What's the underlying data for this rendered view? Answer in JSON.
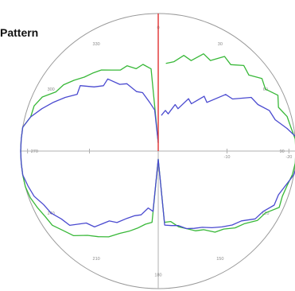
{
  "chart_data": {
    "type": "line",
    "subtype": "polar",
    "title": "Pattern",
    "angle_tick_labels": [
      "0",
      "30",
      "60",
      "90",
      "120",
      "150",
      "180",
      "210",
      "240",
      "270",
      "300",
      "330"
    ],
    "angle_tick_degrees": [
      0,
      30,
      60,
      90,
      120,
      150,
      180,
      210,
      240,
      270,
      300,
      330
    ],
    "radial_tick_labels": [
      "-10",
      "-20"
    ],
    "radial_tick_radii": [
      0.5,
      0.95
    ],
    "grid": true,
    "legend": "none",
    "reference_line": {
      "angle_from": 0,
      "r": 1.0,
      "color": "#e03030"
    },
    "colors": {
      "outer_circle": "#9a9a9a",
      "axes": "#b0b0b0"
    },
    "series": [
      {
        "color": "#38b838",
        "points": [
          [
            5,
            0.64
          ],
          [
            10,
            0.66
          ],
          [
            15,
            0.72
          ],
          [
            20,
            0.7
          ],
          [
            25,
            0.78
          ],
          [
            30,
            0.76
          ],
          [
            35,
            0.84
          ],
          [
            40,
            0.82
          ],
          [
            45,
            0.88
          ],
          [
            50,
            0.86
          ],
          [
            55,
            0.92
          ],
          [
            60,
            0.9
          ],
          [
            65,
            0.96
          ],
          [
            70,
            0.93
          ],
          [
            75,
            0.97
          ],
          [
            80,
            0.98
          ],
          [
            85,
            1.0
          ],
          [
            90,
            1.0
          ],
          [
            95,
            1.0
          ],
          [
            100,
            0.99
          ],
          [
            105,
            0.97
          ],
          [
            110,
            0.96
          ],
          [
            115,
            0.97
          ],
          [
            120,
            0.9
          ],
          [
            125,
            0.88
          ],
          [
            130,
            0.82
          ],
          [
            135,
            0.79
          ],
          [
            140,
            0.74
          ],
          [
            145,
            0.72
          ],
          [
            150,
            0.66
          ],
          [
            155,
            0.64
          ],
          [
            160,
            0.6
          ],
          [
            165,
            0.57
          ],
          [
            170,
            0.52
          ],
          [
            175,
            0.52
          ],
          [
            180,
            0.06
          ],
          [
            185,
            0.52
          ],
          [
            190,
            0.54
          ],
          [
            195,
            0.58
          ],
          [
            200,
            0.62
          ],
          [
            205,
            0.66
          ],
          [
            210,
            0.72
          ],
          [
            215,
            0.76
          ],
          [
            220,
            0.8
          ],
          [
            225,
            0.87
          ],
          [
            230,
            0.9
          ],
          [
            235,
            0.94
          ],
          [
            240,
            0.95
          ],
          [
            245,
            0.97
          ],
          [
            250,
            0.99
          ],
          [
            255,
            1.0
          ],
          [
            260,
            1.0
          ],
          [
            265,
            1.0
          ],
          [
            270,
            1.0
          ],
          [
            275,
            1.0
          ],
          [
            280,
            1.0
          ],
          [
            285,
            0.96
          ],
          [
            290,
            0.96
          ],
          [
            295,
            0.93
          ],
          [
            300,
            0.86
          ],
          [
            305,
            0.84
          ],
          [
            310,
            0.8
          ],
          [
            315,
            0.76
          ],
          [
            320,
            0.74
          ],
          [
            325,
            0.72
          ],
          [
            330,
            0.68
          ],
          [
            335,
            0.65
          ],
          [
            340,
            0.66
          ],
          [
            345,
            0.62
          ],
          [
            350,
            0.64
          ],
          [
            355,
            0.6
          ],
          [
            0,
            0.06
          ]
        ]
      },
      {
        "color": "#4a4ad0",
        "points": [
          [
            5,
            0.26
          ],
          [
            10,
            0.3
          ],
          [
            15,
            0.28
          ],
          [
            20,
            0.36
          ],
          [
            25,
            0.34
          ],
          [
            30,
            0.44
          ],
          [
            35,
            0.42
          ],
          [
            40,
            0.52
          ],
          [
            45,
            0.5
          ],
          [
            50,
            0.64
          ],
          [
            55,
            0.66
          ],
          [
            60,
            0.78
          ],
          [
            65,
            0.8
          ],
          [
            70,
            0.86
          ],
          [
            75,
            0.88
          ],
          [
            80,
            0.95
          ],
          [
            85,
            1.02
          ],
          [
            90,
            1.03
          ],
          [
            95,
            1.02
          ],
          [
            100,
            1.0
          ],
          [
            105,
            0.96
          ],
          [
            110,
            0.93
          ],
          [
            115,
            0.93
          ],
          [
            120,
            0.88
          ],
          [
            125,
            0.86
          ],
          [
            130,
            0.79
          ],
          [
            135,
            0.76
          ],
          [
            140,
            0.72
          ],
          [
            145,
            0.68
          ],
          [
            150,
            0.64
          ],
          [
            155,
            0.62
          ],
          [
            160,
            0.6
          ],
          [
            165,
            0.56
          ],
          [
            170,
            0.55
          ],
          [
            175,
            0.54
          ],
          [
            180,
            0.06
          ],
          [
            185,
            0.44
          ],
          [
            190,
            0.42
          ],
          [
            195,
            0.48
          ],
          [
            200,
            0.5
          ],
          [
            205,
            0.54
          ],
          [
            210,
            0.6
          ],
          [
            215,
            0.62
          ],
          [
            220,
            0.72
          ],
          [
            225,
            0.74
          ],
          [
            230,
            0.84
          ],
          [
            235,
            0.86
          ],
          [
            240,
            0.9
          ],
          [
            245,
            0.92
          ],
          [
            250,
            0.96
          ],
          [
            255,
            0.98
          ],
          [
            260,
            1.0
          ],
          [
            265,
            1.0
          ],
          [
            270,
            1.0
          ],
          [
            275,
            1.0
          ],
          [
            280,
            1.0
          ],
          [
            285,
            0.96
          ],
          [
            290,
            0.9
          ],
          [
            295,
            0.84
          ],
          [
            300,
            0.78
          ],
          [
            305,
            0.72
          ],
          [
            310,
            0.74
          ],
          [
            315,
            0.66
          ],
          [
            320,
            0.62
          ],
          [
            325,
            0.64
          ],
          [
            330,
            0.56
          ],
          [
            335,
            0.54
          ],
          [
            340,
            0.46
          ],
          [
            345,
            0.44
          ],
          [
            350,
            0.36
          ],
          [
            355,
            0.3
          ],
          [
            0,
            0.06
          ]
        ]
      }
    ]
  }
}
